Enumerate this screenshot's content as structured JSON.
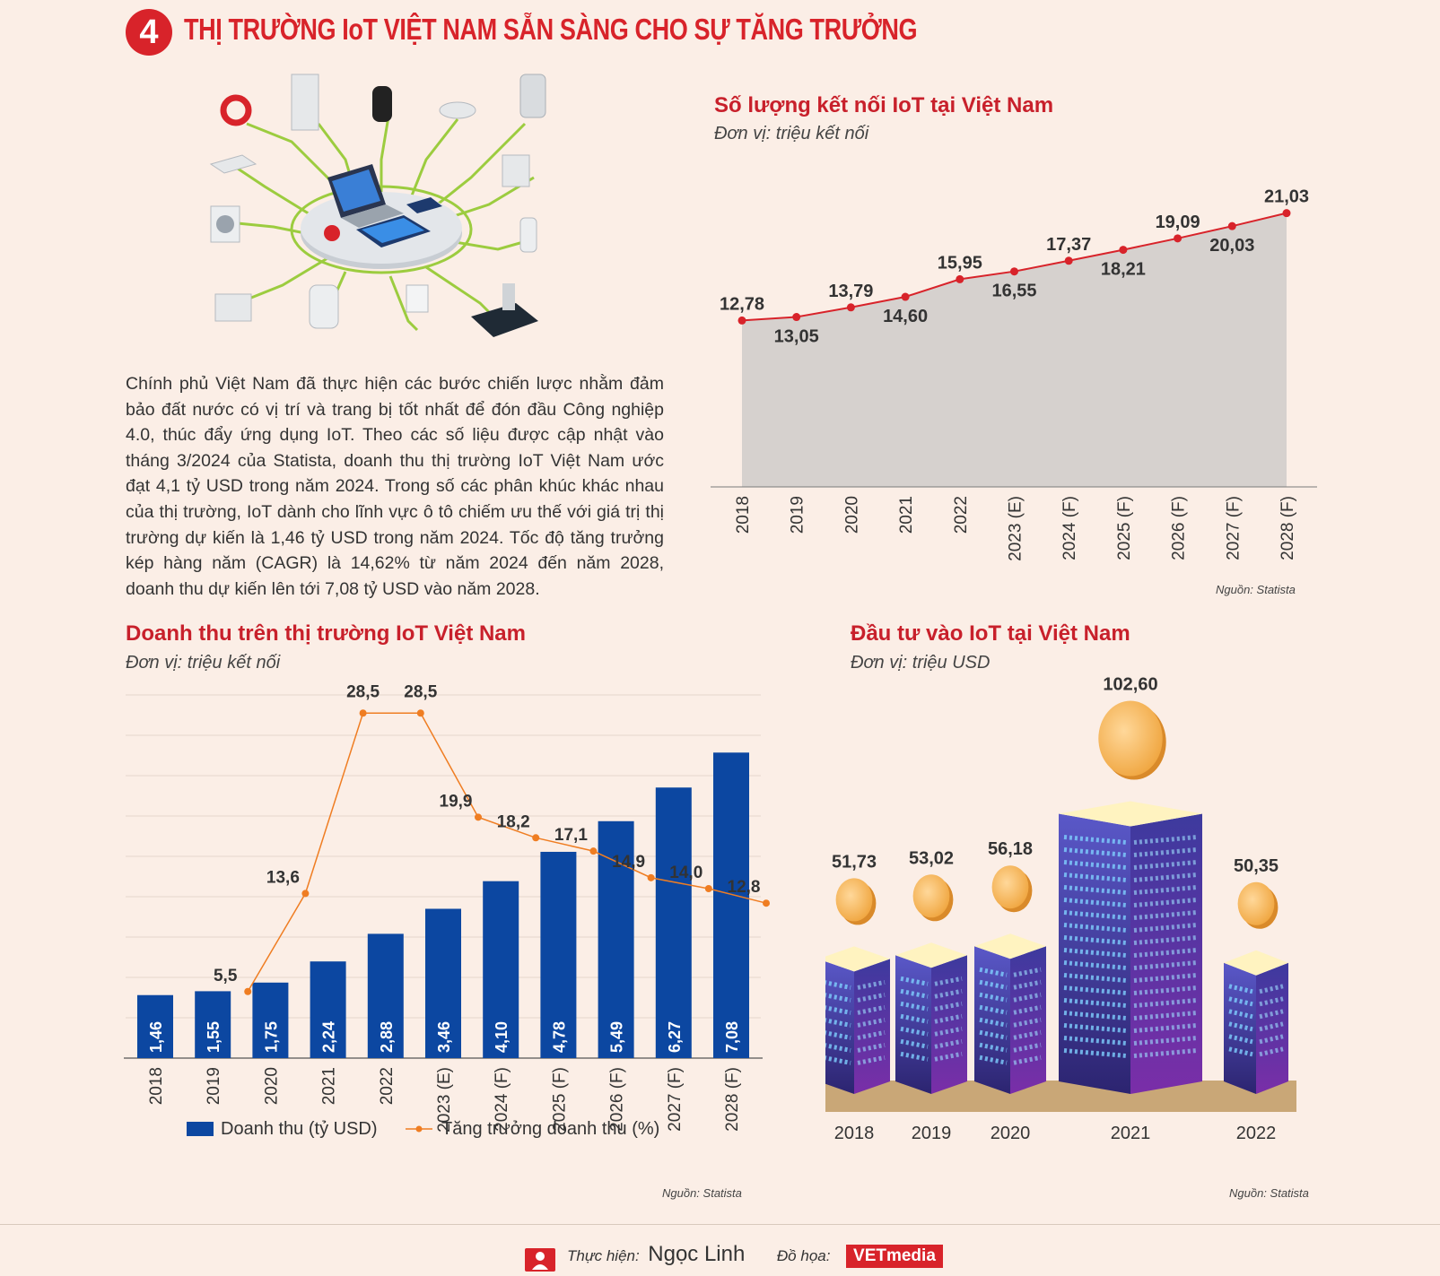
{
  "header": {
    "number": "4",
    "title": "THỊ TRƯỜNG IoT VIỆT NAM SẴN SÀNG CHO SỰ TĂNG TRƯỞNG"
  },
  "intro_text": "Chính phủ Việt Nam đã thực hiện các bước chiến lược nhằm đảm bảo đất nước có vị trí và trang bị tốt nhất để đón đầu Công nghiệp 4.0, thúc đẩy ứng dụng IoT. Theo các số liệu được cập nhật vào tháng 3/2024 của Statista, doanh thu thị trường IoT Việt Nam ước đạt 4,1 tỷ USD trong năm 2024. Trong số các phân khúc khác nhau của thị trường, IoT dành cho lĩnh vực ô tô chiếm ưu thế với giá trị thị trường dự kiến là 1,46 tỷ USD trong năm 2024. Tốc độ tăng trưởng kép hàng năm (CAGR) là 14,62% từ năm 2024 đến năm 2028, doanh thu dự kiến lên tới 7,08 tỷ USD vào năm 2028.",
  "footer": {
    "made_by_label": "Thực hiện:",
    "made_by": "Ngọc Linh",
    "graphics_label": "Đồ họa:",
    "graphics": "VETmedia"
  },
  "colors": {
    "accent": "#d8232a",
    "bar": "#0c47a1",
    "line": "#ef7d22",
    "area": "#d6d1ce"
  },
  "chart_data": [
    {
      "id": "connections",
      "type": "area",
      "title": "Số lượng kết nối IoT tại Việt Nam",
      "subtitle": "Đơn vị: triệu kết nối",
      "source": "Nguồn: Statista",
      "categories": [
        "2018",
        "2019",
        "2020",
        "2021",
        "2022",
        "2023 (E)",
        "2024 (F)",
        "2025 (F)",
        "2026 (F)",
        "2027 (F)",
        "2028 (F)"
      ],
      "values": [
        12.78,
        13.05,
        13.79,
        14.6,
        15.95,
        16.55,
        17.37,
        18.21,
        19.09,
        20.03,
        21.03
      ],
      "value_labels": [
        "12,78",
        "13,05",
        "13,79",
        "14,60",
        "15,95",
        "16,55",
        "17,37",
        "18,21",
        "19,09",
        "20,03",
        "21,03"
      ]
    },
    {
      "id": "revenue",
      "type": "bar",
      "title": "Doanh thu trên thị trường IoT Việt Nam",
      "subtitle": "Đơn vị: triệu kết nối",
      "source": "Nguồn: Statista",
      "categories": [
        "2018",
        "2019",
        "2020",
        "2021",
        "2022",
        "2023 (E)",
        "2024 (F)",
        "2025 (F)",
        "2026 (F)",
        "2027 (F)",
        "2028 (F)"
      ],
      "series": [
        {
          "name": "Doanh thu (tỷ USD)",
          "type": "bar",
          "values": [
            1.46,
            1.55,
            1.75,
            2.24,
            2.88,
            3.46,
            4.1,
            4.78,
            5.49,
            6.27,
            7.08
          ],
          "labels": [
            "1,46",
            "1,55",
            "1,75",
            "2,24",
            "2,88",
            "3,46",
            "4,10",
            "4,78",
            "5,49",
            "6,27",
            "7,08"
          ]
        },
        {
          "name": "Tăng trưởng doanh thu (%)",
          "type": "line",
          "values": [
            null,
            5.5,
            13.6,
            28.5,
            28.5,
            19.9,
            18.2,
            17.1,
            14.9,
            14.0,
            12.8
          ],
          "labels": [
            "",
            "5,5",
            "13,6",
            "28,5",
            "28,5",
            "19,9",
            "18,2",
            "17,1",
            "14,9",
            "14,0",
            "12,8"
          ]
        }
      ]
    },
    {
      "id": "investment",
      "type": "bar",
      "title": "Đầu tư vào IoT tại Việt Nam",
      "subtitle": "Đơn vị: triệu USD",
      "source": "Nguồn: Statista",
      "categories": [
        "2018",
        "2019",
        "2020",
        "2021",
        "2022"
      ],
      "values": [
        51.73,
        53.02,
        56.18,
        102.6,
        50.35
      ],
      "value_labels": [
        "51,73",
        "53,02",
        "56,18",
        "102,60",
        "50,35"
      ]
    }
  ]
}
